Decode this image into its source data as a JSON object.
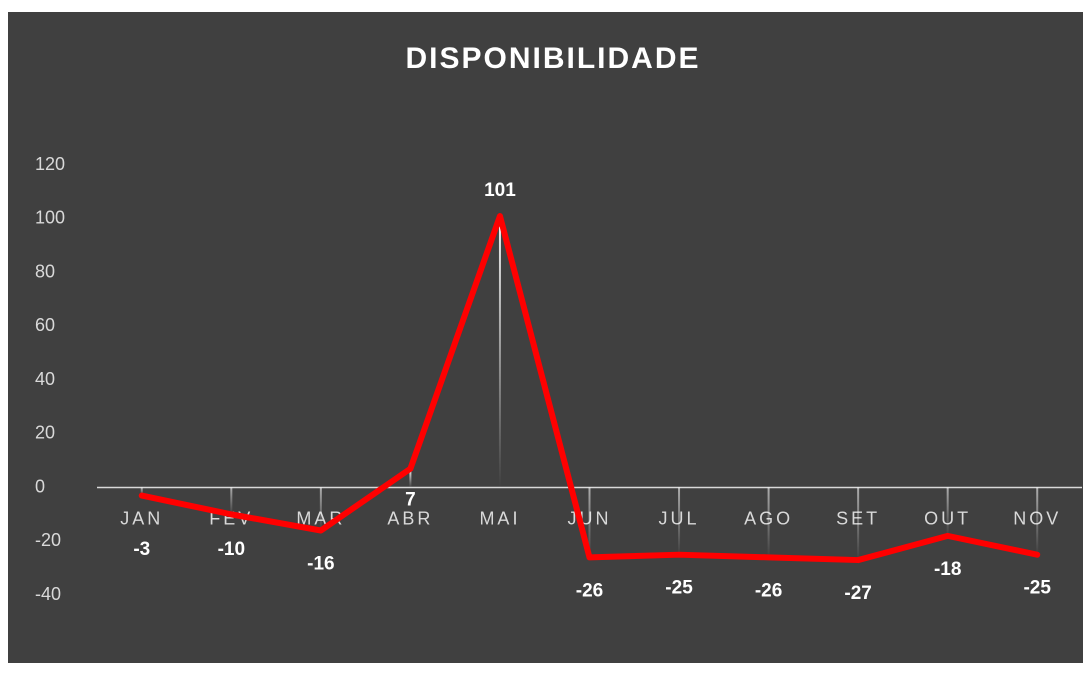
{
  "chart_data": {
    "type": "line",
    "title": "DISPONIBILIDADE",
    "categories": [
      "JAN",
      "FEV",
      "MAR",
      "ABR",
      "MAI",
      "JUN",
      "JUL",
      "AGO",
      "SET",
      "OUT",
      "NOV"
    ],
    "series": [
      {
        "name": "DISPONIBILIDADE",
        "color": "#ff0000",
        "values": [
          -3,
          -10,
          -16,
          7,
          101,
          -26,
          -25,
          -26,
          -27,
          -18,
          -25
        ]
      }
    ],
    "ylim": [
      -40,
      120
    ],
    "yticks": [
      -40,
      -20,
      0,
      20,
      40,
      60,
      80,
      100,
      120
    ],
    "grid": false
  }
}
